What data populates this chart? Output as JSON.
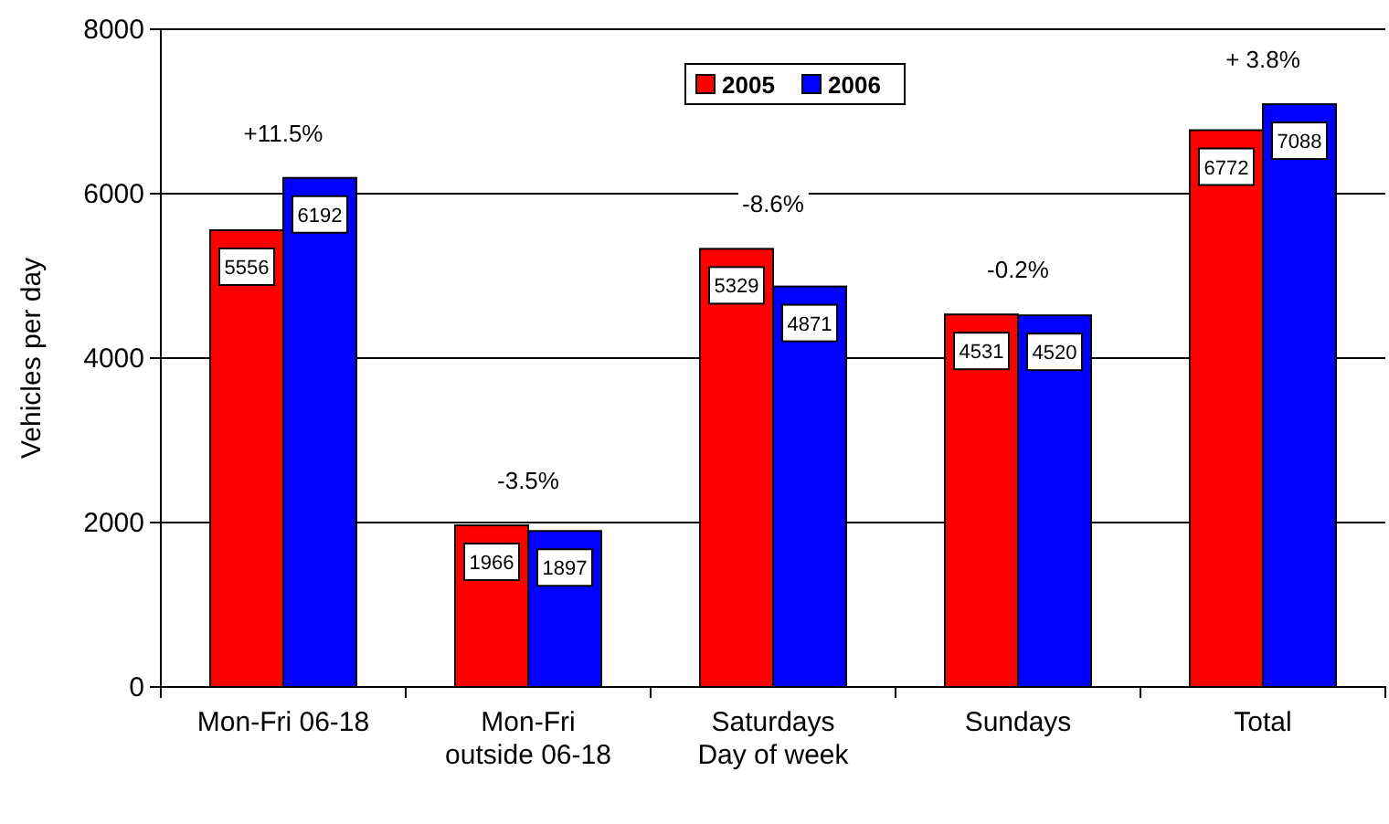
{
  "chart_data": {
    "type": "bar",
    "xlabel": "Day of week",
    "ylabel": "Vehicles per day",
    "categories": [
      "Mon-Fri 06-18",
      "Mon-Fri outside 06-18",
      "Saturdays",
      "Sundays",
      "Total"
    ],
    "series": [
      {
        "name": "2005",
        "color": "#ff0000",
        "values": [
          5556,
          1966,
          5329,
          4531,
          6772
        ]
      },
      {
        "name": "2006",
        "color": "#0000ff",
        "values": [
          6192,
          1897,
          4871,
          4520,
          7088
        ]
      }
    ],
    "ylim": [
      0,
      8000
    ],
    "yticks": [
      0,
      2000,
      4000,
      6000,
      8000
    ],
    "grid": "y",
    "legend": "top",
    "data_labels": true,
    "annotations": [
      "+11.5%",
      "-3.5%",
      "-8.6%",
      "-0.2%",
      "+ 3.8%"
    ]
  }
}
